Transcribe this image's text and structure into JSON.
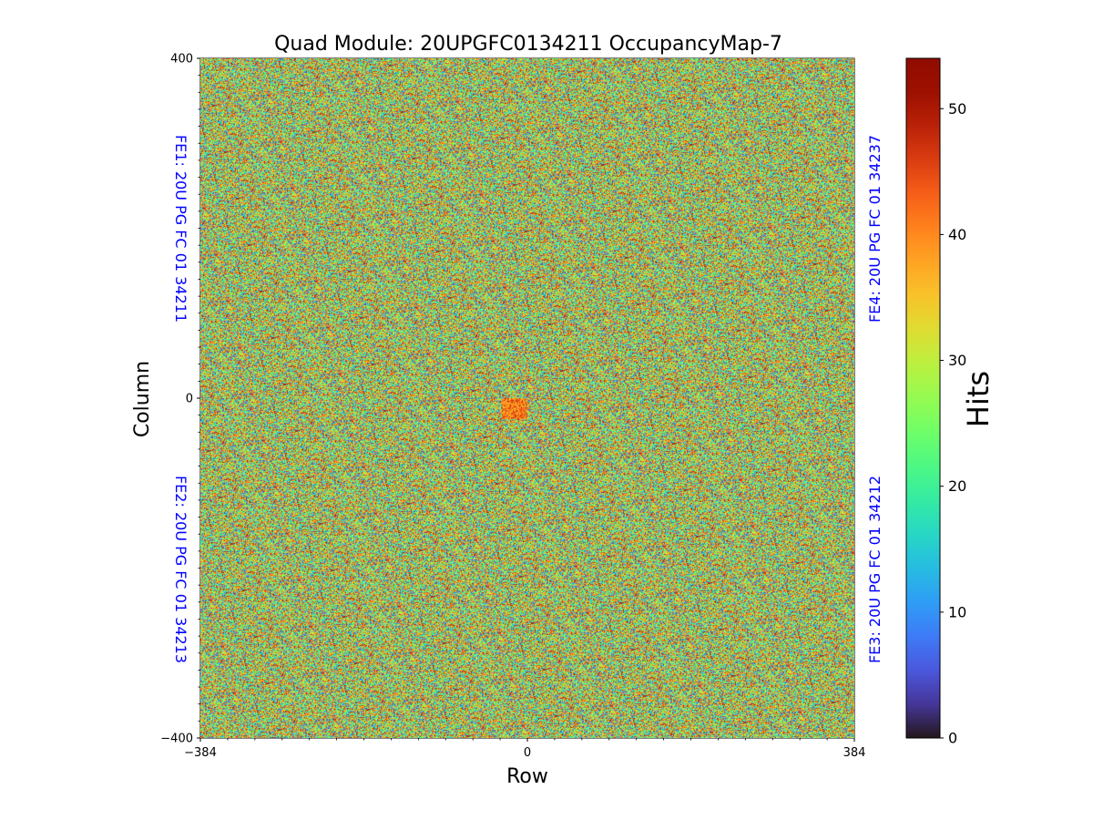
{
  "chart_data": {
    "type": "heatmap",
    "title": "Quad Module: 20UPGFC0134211 OccupancyMap-7",
    "xlabel": "Row",
    "ylabel": "Column",
    "xlim": [
      -384,
      384
    ],
    "ylim": [
      -400,
      400
    ],
    "x_ticks": [
      {
        "value": -384,
        "label": "−384"
      },
      {
        "value": 0,
        "label": "0"
      },
      {
        "value": 384,
        "label": "384"
      }
    ],
    "y_ticks": [
      {
        "value": 400,
        "label": "400"
      },
      {
        "value": 0,
        "label": "0"
      },
      {
        "value": -400,
        "label": "−400"
      }
    ],
    "x_minor_step": 32,
    "y_minor_step": 20,
    "colormap": "turbo",
    "colorbar": {
      "label": "Hits",
      "range": [
        0,
        54
      ],
      "ticks": [
        {
          "value": 0,
          "label": "0"
        },
        {
          "value": 10,
          "label": "10"
        },
        {
          "value": 20,
          "label": "20"
        },
        {
          "value": 30,
          "label": "30"
        },
        {
          "value": 40,
          "label": "40"
        },
        {
          "value": 50,
          "label": "50"
        }
      ]
    },
    "quadrants": [
      {
        "id": "FE1",
        "label": "FE1: 20U PG FC 01 34211",
        "position": "top-left",
        "mean_hits": 28
      },
      {
        "id": "FE2",
        "label": "FE2: 20U PG FC 01 34213",
        "position": "bottom-left",
        "mean_hits": 28
      },
      {
        "id": "FE3",
        "label": "FE3: 20U PG FC 01 34212",
        "position": "bottom-right",
        "mean_hits": 28
      },
      {
        "id": "FE4",
        "label": "FE4: 20U PG FC 01 34237",
        "position": "top-right",
        "mean_hits": 29
      }
    ],
    "hotspot": {
      "x_range": [
        -30,
        0
      ],
      "y_range": [
        -25,
        0
      ],
      "approx_hits": 48
    },
    "label_color": "#0000ff"
  }
}
